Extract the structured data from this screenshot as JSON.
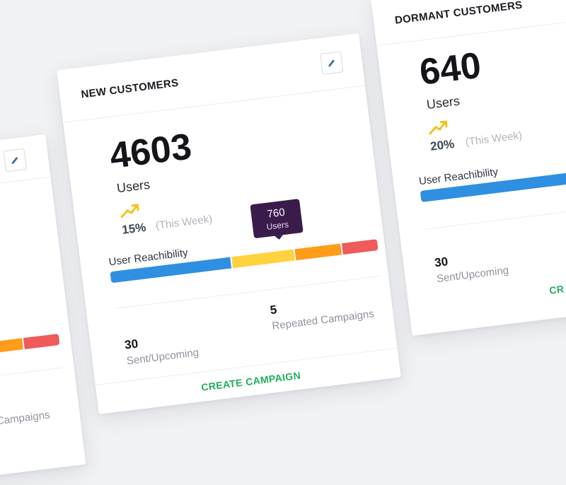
{
  "colors": {
    "blue": "#2f8fe0",
    "yellow": "#ffd23f",
    "orange": "#ff9c1a",
    "red": "#ef5a5a",
    "green": "#1fae5b",
    "tooltip": "#3b1b4c"
  },
  "cards": {
    "left": {
      "repeated_label_partial": "Campaigns"
    },
    "center": {
      "title": "NEW CUSTOMERS",
      "count": "4603",
      "count_unit": "Users",
      "growth": "15%",
      "period": "(This Week)",
      "reach_label": "User Reachibility",
      "tooltip_value": "760",
      "tooltip_unit": "Users",
      "sent_value": "30",
      "sent_label": "Sent/Upcoming",
      "repeated_value": "5",
      "repeated_label": "Repeated Campaigns",
      "cta": "CREATE CAMPAIGN"
    },
    "right": {
      "title": "DORMANT CUSTOMERS",
      "count": "640",
      "count_unit": "Users",
      "growth": "20%",
      "period": "(This Week)",
      "reach_label": "User Reachibility",
      "sent_value": "30",
      "sent_label": "Sent/Upcoming",
      "cta_partial": "CR"
    }
  },
  "icons": {
    "edit": "pencil-icon",
    "trend": "trending-up-icon"
  }
}
